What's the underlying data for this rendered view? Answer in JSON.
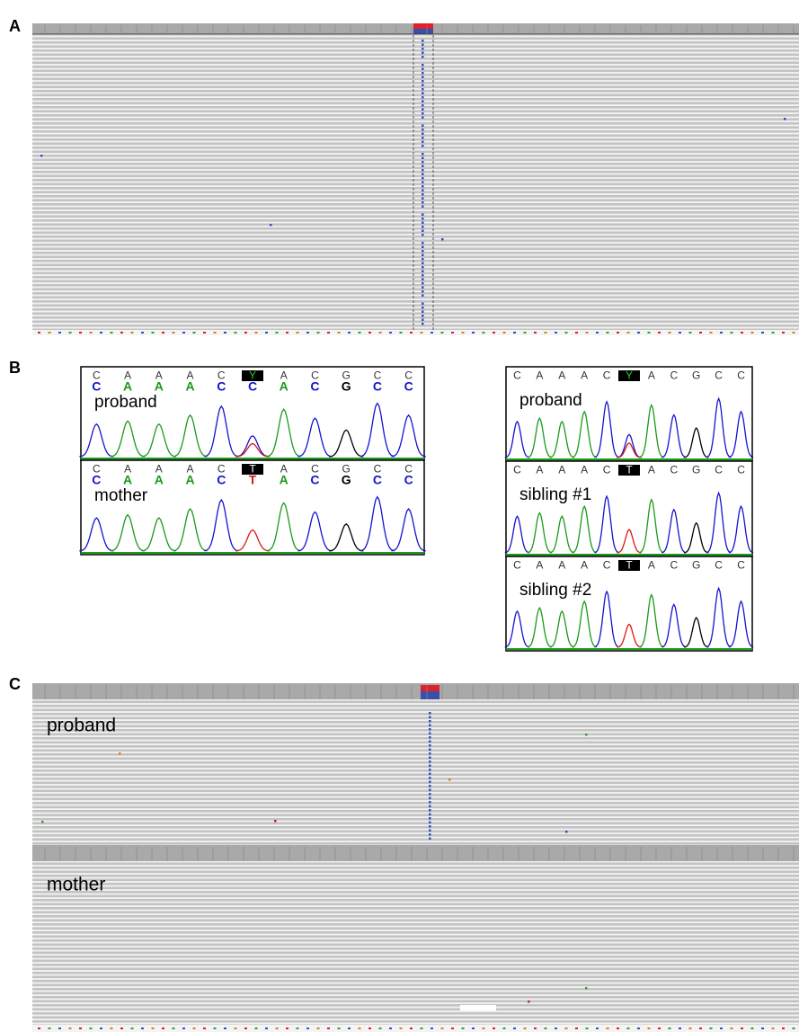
{
  "panel_labels": {
    "a": "A",
    "b": "B",
    "c": "C"
  },
  "panel_b": {
    "left": [
      {
        "sample": "proband",
        "calls": [
          "C",
          "A",
          "A",
          "A",
          "C",
          "Y",
          "A",
          "C",
          "G",
          "C",
          "C"
        ],
        "bases": [
          "C",
          "A",
          "A",
          "A",
          "C",
          "C",
          "A",
          "C",
          "G",
          "C",
          "C"
        ]
      },
      {
        "sample": "mother",
        "calls": [
          "C",
          "A",
          "A",
          "A",
          "C",
          "T",
          "A",
          "C",
          "G",
          "C",
          "C"
        ],
        "bases": [
          "C",
          "A",
          "A",
          "A",
          "C",
          "T",
          "A",
          "C",
          "G",
          "C",
          "C"
        ]
      }
    ],
    "right": [
      {
        "sample": "proband",
        "calls": [
          "C",
          "A",
          "A",
          "A",
          "C",
          "Y",
          "A",
          "C",
          "G",
          "C",
          "C"
        ]
      },
      {
        "sample": "sibling #1",
        "calls": [
          "C",
          "A",
          "A",
          "A",
          "C",
          "T",
          "A",
          "C",
          "G",
          "C",
          "C"
        ]
      },
      {
        "sample": "sibling #2",
        "calls": [
          "C",
          "A",
          "A",
          "A",
          "C",
          "T",
          "A",
          "C",
          "G",
          "C",
          "C"
        ]
      }
    ]
  },
  "panel_c": {
    "tracks": [
      "proband",
      "mother"
    ]
  }
}
